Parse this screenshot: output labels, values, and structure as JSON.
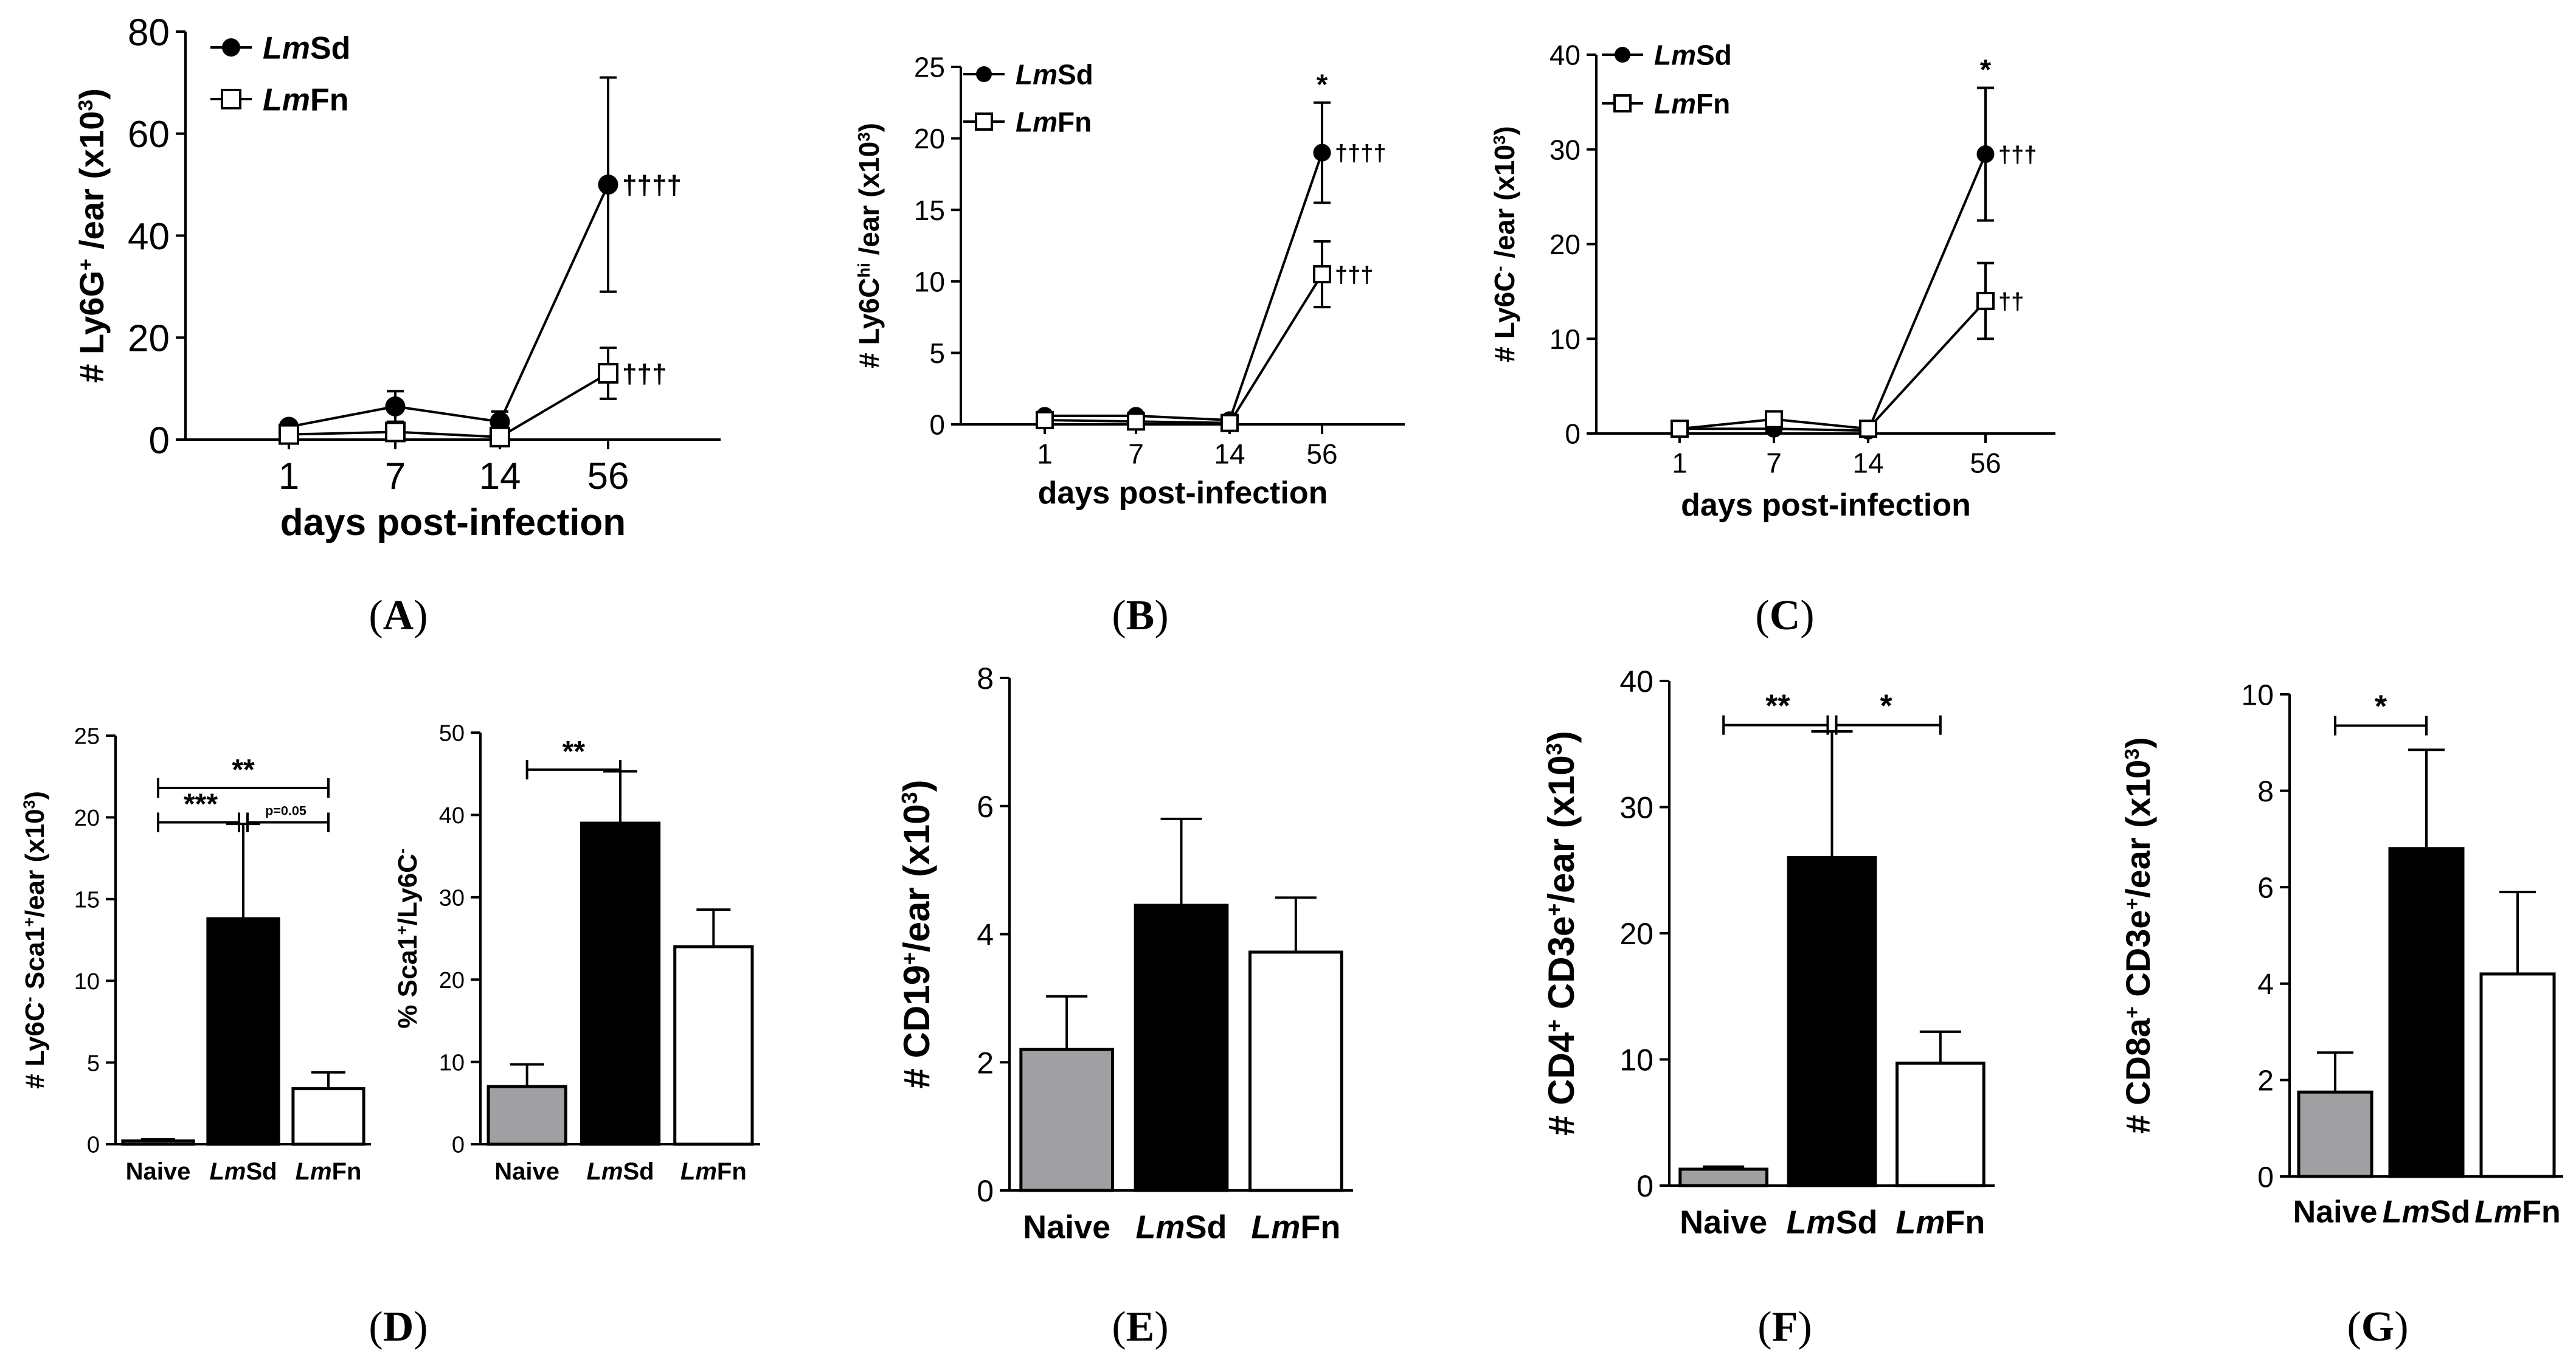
{
  "colors": {
    "naive": "#a0a0a3",
    "lmsd": "#000000",
    "lmfn": "#ffffff",
    "axis": "#000000"
  },
  "chart_data": [
    {
      "id": "A",
      "type": "line",
      "panel_label": [
        "(",
        "A",
        ")"
      ],
      "x": [
        "1",
        "7",
        "14",
        "56"
      ],
      "xlabel": "days post-infection",
      "ylabel": [
        "# Ly6G",
        "+",
        " /ear (x10",
        "3",
        ")"
      ],
      "ylim": [
        0,
        80
      ],
      "yticks": [
        "0",
        "20",
        "40",
        "60",
        "80"
      ],
      "legend_position": "top-left",
      "series": [
        {
          "name": [
            "Lm",
            "Sd"
          ],
          "marker": "circle",
          "values": [
            2.5,
            6.5,
            3.5,
            50
          ],
          "errors": [
            0.5,
            3,
            2,
            21
          ],
          "annotations": [
            "",
            "",
            "",
            "††††"
          ]
        },
        {
          "name": [
            "Lm",
            "Fn"
          ],
          "marker": "square",
          "values": [
            1,
            1.5,
            0.5,
            13
          ],
          "errors": [
            0.3,
            1,
            0.4,
            5
          ],
          "annotations": [
            "",
            "",
            "",
            "†††"
          ]
        }
      ],
      "top_annotations": [
        "",
        "",
        "",
        ""
      ]
    },
    {
      "id": "B",
      "type": "line",
      "panel_label": [
        "(",
        "B",
        ")"
      ],
      "x": [
        "1",
        "7",
        "14",
        "56"
      ],
      "xlabel": "days post-infection",
      "ylabel": [
        "# Ly6C",
        "hi",
        " /ear (x10",
        "3",
        ")"
      ],
      "ylim": [
        0,
        25
      ],
      "yticks": [
        "0",
        "5",
        "10",
        "15",
        "20",
        "25"
      ],
      "legend_position": "top-left",
      "series": [
        {
          "name": [
            "Lm",
            "Sd"
          ],
          "marker": "circle",
          "values": [
            0.6,
            0.6,
            0.3,
            19
          ],
          "errors": [
            0.2,
            0.2,
            0.1,
            3.5
          ],
          "annotations": [
            "",
            "",
            "",
            "††††"
          ]
        },
        {
          "name": [
            "Lm",
            "Fn"
          ],
          "marker": "square",
          "values": [
            0.3,
            0.2,
            0.1,
            10.5
          ],
          "errors": [
            0.1,
            0.1,
            0.05,
            2.3
          ],
          "annotations": [
            "",
            "",
            "",
            "†††"
          ]
        }
      ],
      "top_annotations": [
        "",
        "",
        "",
        "*"
      ]
    },
    {
      "id": "C",
      "type": "line",
      "panel_label": [
        "(",
        "C",
        ")"
      ],
      "x": [
        "1",
        "7",
        "14",
        "56"
      ],
      "xlabel": "days post-infection",
      "ylabel": [
        "# Ly6C",
        "-",
        " /ear (x10",
        "3",
        ")"
      ],
      "ylim": [
        0,
        40
      ],
      "yticks": [
        "0",
        "10",
        "20",
        "30",
        "40"
      ],
      "legend_position": "top-left",
      "series": [
        {
          "name": [
            "Lm",
            "Sd"
          ],
          "marker": "circle",
          "values": [
            0.5,
            0.5,
            0.3,
            29.5
          ],
          "errors": [
            0.2,
            0.3,
            0.1,
            7
          ],
          "annotations": [
            "",
            "",
            "",
            "†††"
          ]
        },
        {
          "name": [
            "Lm",
            "Fn"
          ],
          "marker": "square",
          "values": [
            0.5,
            1.5,
            0.5,
            14
          ],
          "errors": [
            0.2,
            0.4,
            0.2,
            4
          ],
          "annotations": [
            "",
            "",
            "",
            "††"
          ]
        }
      ],
      "top_annotations": [
        "",
        "",
        "",
        "*"
      ]
    },
    {
      "id": "D1",
      "type": "bar",
      "categories": [
        [
          "Naive"
        ],
        [
          "Lm",
          "Sd"
        ],
        [
          "Lm",
          "Fn"
        ]
      ],
      "values": [
        0.2,
        13.8,
        3.4
      ],
      "errors": [
        0.1,
        5.8,
        1.0
      ],
      "ylabel": [
        "# Ly6C",
        "-",
        " Sca1",
        "+",
        "/ear (x10",
        "3",
        ")"
      ],
      "ylim": [
        0,
        25
      ],
      "yticks": [
        "0",
        "5",
        "10",
        "15",
        "20",
        "25"
      ],
      "significance": [
        {
          "from": 0,
          "to": 2,
          "level": 21.8,
          "label": "**"
        },
        {
          "from": 0,
          "to": 1,
          "level": 19.7,
          "label": "***"
        },
        {
          "from": 1,
          "to": 2,
          "level": 19.7,
          "label": "p=0.05"
        }
      ]
    },
    {
      "id": "D2",
      "type": "bar",
      "panel_label": [
        "(",
        "D",
        ")"
      ],
      "categories": [
        [
          "Naive"
        ],
        [
          "Lm",
          "Sd"
        ],
        [
          "Lm",
          "Fn"
        ]
      ],
      "values": [
        7,
        39,
        24
      ],
      "errors": [
        2.7,
        6.3,
        4.5
      ],
      "ylabel": [
        "% Sca1",
        "+",
        "/Ly6C",
        "-",
        ""
      ],
      "ylim": [
        0,
        50
      ],
      "yticks": [
        "0",
        "10",
        "20",
        "30",
        "40",
        "50"
      ],
      "significance": [
        {
          "from": 0,
          "to": 1,
          "level": 45.5,
          "label": "**"
        }
      ]
    },
    {
      "id": "E",
      "type": "bar",
      "panel_label": [
        "(",
        "E",
        ")"
      ],
      "categories": [
        [
          "Naive"
        ],
        [
          "Lm",
          "Sd"
        ],
        [
          "Lm",
          "Fn"
        ]
      ],
      "values": [
        2.2,
        4.45,
        3.72
      ],
      "errors": [
        0.83,
        1.35,
        0.85
      ],
      "ylabel": [
        "# CD19",
        "+",
        "/ear (x10",
        "3",
        ")"
      ],
      "ylim": [
        0,
        8
      ],
      "yticks": [
        "0",
        "2",
        "4",
        "6",
        "8"
      ],
      "significance": []
    },
    {
      "id": "F",
      "type": "bar",
      "panel_label": [
        "(",
        "F",
        ")"
      ],
      "categories": [
        [
          "Naive"
        ],
        [
          "Lm",
          "Sd"
        ],
        [
          "Lm",
          "Fn"
        ]
      ],
      "values": [
        1.3,
        26,
        9.7
      ],
      "errors": [
        0.2,
        10,
        2.5
      ],
      "ylabel": [
        "# CD4",
        "+",
        " CD3e",
        "+",
        "/ear (x10",
        "3",
        ")"
      ],
      "ylim": [
        0,
        40
      ],
      "yticks": [
        "0",
        "10",
        "20",
        "30",
        "40"
      ],
      "significance": [
        {
          "from": 0,
          "to": 1,
          "level": 36.5,
          "label": "**"
        },
        {
          "from": 1,
          "to": 2,
          "level": 36.5,
          "label": "*"
        }
      ]
    },
    {
      "id": "G",
      "type": "bar",
      "panel_label": [
        "(",
        "G",
        ")"
      ],
      "categories": [
        [
          "Naive"
        ],
        [
          "Lm",
          "Sd"
        ],
        [
          "Lm",
          "Fn"
        ]
      ],
      "values": [
        1.75,
        6.8,
        4.2
      ],
      "errors": [
        0.82,
        2.05,
        1.7
      ],
      "ylabel": [
        "# CD8a",
        "+",
        " CD3e",
        "+",
        "/ear (x10",
        "3",
        ")"
      ],
      "ylim": [
        0,
        10
      ],
      "yticks": [
        "0",
        "2",
        "4",
        "6",
        "8",
        "10"
      ],
      "significance": [
        {
          "from": 0,
          "to": 1,
          "level": 9.35,
          "label": "*"
        }
      ]
    }
  ]
}
